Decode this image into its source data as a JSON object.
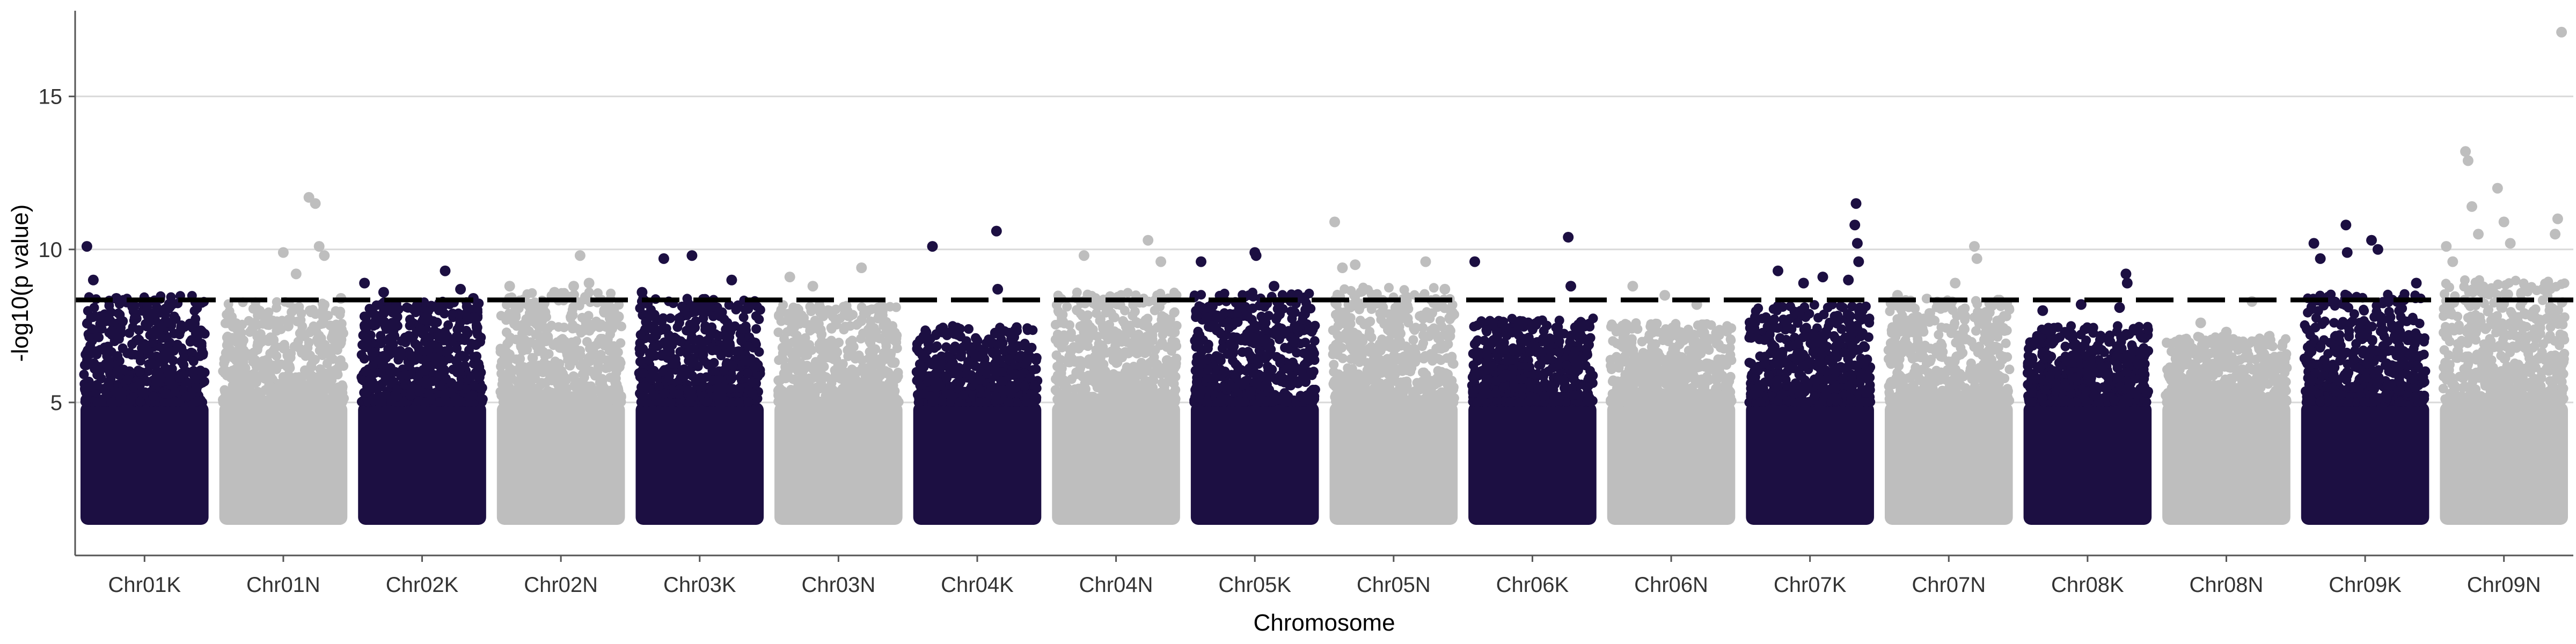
{
  "chart_data": {
    "type": "scatter",
    "subtype": "manhattan",
    "xlabel": "Chromosome",
    "ylabel": "-log10(p value)",
    "ylim": [
      0,
      17.8
    ],
    "yticks": [
      5,
      10,
      15
    ],
    "grid": {
      "horizontal": true,
      "vertical": false
    },
    "legend": "none",
    "threshold": 8.35,
    "colors": {
      "dark": "#1c0f42",
      "light": "#bebebe",
      "threshold": "#000000",
      "grid": "#d9d9d9",
      "axis": "#555555"
    },
    "categories": [
      "Chr01K",
      "Chr01N",
      "Chr02K",
      "Chr02N",
      "Chr03K",
      "Chr03N",
      "Chr04K",
      "Chr04N",
      "Chr05K",
      "Chr05N",
      "Chr06K",
      "Chr06N",
      "Chr07K",
      "Chr07N",
      "Chr08K",
      "Chr08N",
      "Chr09K",
      "Chr09N"
    ],
    "chromosomes": [
      {
        "name": "Chr01K",
        "color": "dark",
        "max": 8.5,
        "outliers": [
          [
            0.05,
            10.1
          ],
          [
            0.1,
            9.0
          ],
          [
            0.28,
            8.4
          ],
          [
            0.55,
            7.9
          ]
        ]
      },
      {
        "name": "Chr01N",
        "color": "light",
        "max": 8.3,
        "outliers": [
          [
            0.5,
            9.9
          ],
          [
            0.7,
            11.7
          ],
          [
            0.75,
            11.5
          ],
          [
            0.78,
            10.1
          ],
          [
            0.82,
            9.8
          ],
          [
            0.6,
            9.2
          ],
          [
            0.95,
            8.4
          ]
        ]
      },
      {
        "name": "Chr02K",
        "color": "dark",
        "max": 8.3,
        "outliers": [
          [
            0.05,
            8.9
          ],
          [
            0.2,
            8.6
          ],
          [
            0.68,
            9.3
          ],
          [
            0.8,
            8.7
          ],
          [
            0.9,
            8.4
          ]
        ]
      },
      {
        "name": "Chr02N",
        "color": "light",
        "max": 8.6,
        "outliers": [
          [
            0.1,
            8.8
          ],
          [
            0.45,
            8.6
          ],
          [
            0.6,
            8.8
          ],
          [
            0.65,
            9.8
          ],
          [
            0.72,
            8.9
          ],
          [
            0.95,
            7.8
          ]
        ]
      },
      {
        "name": "Chr03K",
        "color": "dark",
        "max": 8.4,
        "outliers": [
          [
            0.05,
            8.6
          ],
          [
            0.22,
            9.7
          ],
          [
            0.44,
            9.8
          ],
          [
            0.75,
            9.0
          ],
          [
            0.9,
            8.2
          ]
        ]
      },
      {
        "name": "Chr03N",
        "color": "light",
        "max": 8.2,
        "outliers": [
          [
            0.12,
            9.1
          ],
          [
            0.3,
            8.8
          ],
          [
            0.68,
            9.4
          ]
        ]
      },
      {
        "name": "Chr04K",
        "color": "dark",
        "max": 7.5,
        "outliers": [
          [
            0.15,
            10.1
          ],
          [
            0.65,
            10.6
          ],
          [
            0.66,
            8.7
          ]
        ]
      },
      {
        "name": "Chr04N",
        "color": "light",
        "max": 8.6,
        "outliers": [
          [
            0.25,
            9.8
          ],
          [
            0.4,
            7.5
          ],
          [
            0.42,
            7.2
          ],
          [
            0.75,
            10.3
          ],
          [
            0.85,
            9.6
          ]
        ]
      },
      {
        "name": "Chr05K",
        "color": "dark",
        "max": 8.6,
        "outliers": [
          [
            0.08,
            9.6
          ],
          [
            0.5,
            9.9
          ],
          [
            0.51,
            9.8
          ],
          [
            0.65,
            8.8
          ]
        ]
      },
      {
        "name": "Chr05N",
        "color": "light",
        "max": 8.8,
        "outliers": [
          [
            0.04,
            10.9
          ],
          [
            0.1,
            9.4
          ],
          [
            0.2,
            9.5
          ],
          [
            0.75,
            9.6
          ],
          [
            0.9,
            8.7
          ]
        ]
      },
      {
        "name": "Chr06K",
        "color": "dark",
        "max": 7.8,
        "outliers": [
          [
            0.05,
            9.6
          ],
          [
            0.78,
            10.4
          ],
          [
            0.8,
            8.8
          ]
        ]
      },
      {
        "name": "Chr06N",
        "color": "light",
        "max": 7.6,
        "outliers": [
          [
            0.2,
            8.8
          ],
          [
            0.45,
            8.5
          ],
          [
            0.7,
            8.2
          ]
        ]
      },
      {
        "name": "Chr07K",
        "color": "dark",
        "max": 8.2,
        "outliers": [
          [
            0.25,
            9.3
          ],
          [
            0.45,
            8.9
          ],
          [
            0.6,
            9.1
          ],
          [
            0.8,
            9.0
          ],
          [
            0.85,
            10.8
          ],
          [
            0.86,
            11.5
          ],
          [
            0.87,
            10.2
          ],
          [
            0.88,
            9.6
          ]
        ]
      },
      {
        "name": "Chr07N",
        "color": "light",
        "max": 8.4,
        "outliers": [
          [
            0.1,
            8.5
          ],
          [
            0.55,
            8.9
          ],
          [
            0.7,
            10.1
          ],
          [
            0.72,
            9.7
          ]
        ]
      },
      {
        "name": "Chr08K",
        "color": "dark",
        "max": 7.5,
        "outliers": [
          [
            0.15,
            8.0
          ],
          [
            0.45,
            8.2
          ],
          [
            0.75,
            8.1
          ],
          [
            0.8,
            9.2
          ],
          [
            0.81,
            8.9
          ]
        ]
      },
      {
        "name": "Chr08N",
        "color": "light",
        "max": 7.2,
        "outliers": [
          [
            0.3,
            7.6
          ],
          [
            0.5,
            7.3
          ],
          [
            0.7,
            8.3
          ]
        ]
      },
      {
        "name": "Chr09K",
        "color": "dark",
        "max": 8.6,
        "outliers": [
          [
            0.1,
            10.2
          ],
          [
            0.15,
            9.7
          ],
          [
            0.35,
            10.8
          ],
          [
            0.36,
            9.9
          ],
          [
            0.55,
            10.3
          ],
          [
            0.6,
            10.0
          ],
          [
            0.9,
            8.9
          ]
        ]
      },
      {
        "name": "Chr09N",
        "color": "light",
        "max": 9.0,
        "outliers": [
          [
            0.05,
            10.1
          ],
          [
            0.1,
            9.6
          ],
          [
            0.2,
            13.2
          ],
          [
            0.22,
            12.9
          ],
          [
            0.25,
            11.4
          ],
          [
            0.3,
            10.5
          ],
          [
            0.45,
            12.0
          ],
          [
            0.5,
            10.9
          ],
          [
            0.55,
            10.2
          ],
          [
            0.95,
            17.1
          ],
          [
            0.92,
            11.0
          ],
          [
            0.9,
            10.5
          ]
        ]
      }
    ]
  }
}
